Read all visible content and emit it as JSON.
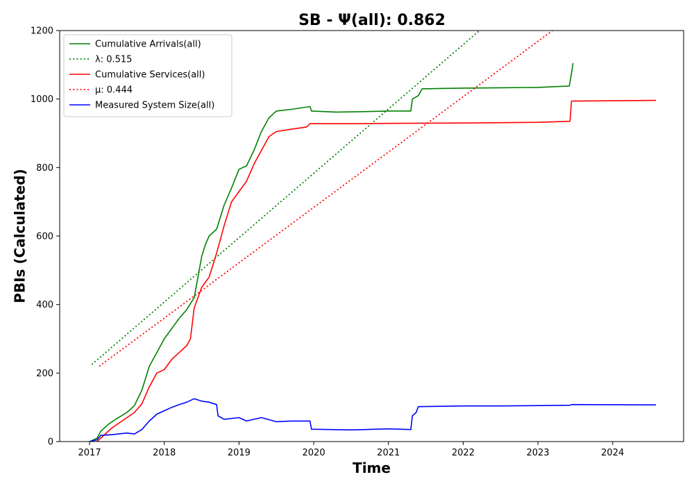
{
  "chart_data": {
    "type": "line",
    "title": "SB -  Ψ(all): 0.862",
    "xlabel": "Time",
    "ylabel": "PBIs (Calculated)",
    "xlim": [
      2016.6,
      2024.95
    ],
    "ylim": [
      0,
      1200
    ],
    "xticks": [
      {
        "value": 2017,
        "label": "2017"
      },
      {
        "value": 2018,
        "label": "2018"
      },
      {
        "value": 2019,
        "label": "2019"
      },
      {
        "value": 2020,
        "label": "2020"
      },
      {
        "value": 2021,
        "label": "2021"
      },
      {
        "value": 2022,
        "label": "2022"
      },
      {
        "value": 2023,
        "label": "2023"
      },
      {
        "value": 2024,
        "label": "2024"
      }
    ],
    "yticks": [
      {
        "value": 0,
        "label": "0"
      },
      {
        "value": 200,
        "label": "200"
      },
      {
        "value": 400,
        "label": "400"
      },
      {
        "value": 600,
        "label": "600"
      },
      {
        "value": 800,
        "label": "800"
      },
      {
        "value": 1000,
        "label": "1000"
      },
      {
        "value": 1200,
        "label": "1200"
      }
    ],
    "grid": false,
    "legend_position": "top-left",
    "series": [
      {
        "name": "Cumulative Arrivals(all)",
        "color": "#008000",
        "style": "solid",
        "x": [
          2017.0,
          2017.1,
          2017.15,
          2017.25,
          2017.35,
          2017.5,
          2017.6,
          2017.7,
          2017.8,
          2017.9,
          2018.0,
          2018.1,
          2018.2,
          2018.3,
          2018.4,
          2018.45,
          2018.5,
          2018.55,
          2018.6,
          2018.7,
          2018.8,
          2018.9,
          2019.0,
          2019.1,
          2019.2,
          2019.3,
          2019.4,
          2019.5,
          2019.7,
          2019.95,
          2019.97,
          2020.3,
          2020.6,
          2021.0,
          2021.3,
          2021.32,
          2021.4,
          2021.45,
          2022.0,
          2022.5,
          2023.0,
          2023.2,
          2023.42,
          2023.45,
          2023.47
        ],
        "values": [
          0,
          10,
          30,
          50,
          65,
          85,
          105,
          150,
          220,
          260,
          300,
          330,
          360,
          385,
          420,
          480,
          540,
          575,
          600,
          620,
          690,
          740,
          795,
          805,
          850,
          905,
          945,
          965,
          970,
          978,
          965,
          962,
          963,
          965,
          965,
          1000,
          1010,
          1030,
          1032,
          1033,
          1034,
          1036,
          1038,
          1075,
          1105
        ]
      },
      {
        "name": "λ: 0.515",
        "color": "#008000",
        "style": "dotted",
        "x": [
          2017.03,
          2022.35
        ],
        "values": [
          225,
          1225
        ]
      },
      {
        "name": "Cumulative Services(all)",
        "color": "#ff0000",
        "style": "solid",
        "x": [
          2017.1,
          2017.2,
          2017.3,
          2017.4,
          2017.5,
          2017.6,
          2017.7,
          2017.8,
          2017.9,
          2018.0,
          2018.1,
          2018.2,
          2018.3,
          2018.35,
          2018.4,
          2018.5,
          2018.6,
          2018.7,
          2018.8,
          2018.9,
          2019.0,
          2019.1,
          2019.2,
          2019.3,
          2019.4,
          2019.5,
          2019.7,
          2019.9,
          2019.95,
          2020.5,
          2021.0,
          2022.0,
          2023.0,
          2023.43,
          2023.45,
          2024.58
        ],
        "values": [
          0,
          20,
          40,
          55,
          70,
          85,
          110,
          160,
          200,
          210,
          240,
          260,
          280,
          300,
          390,
          450,
          480,
          550,
          630,
          700,
          730,
          760,
          810,
          850,
          890,
          905,
          912,
          918,
          928,
          928,
          929,
          930,
          932,
          935,
          994,
          996
        ]
      },
      {
        "name": "μ: 0.444",
        "color": "#ff0000",
        "style": "dotted",
        "x": [
          2017.13,
          2023.35
        ],
        "values": [
          220,
          1225
        ]
      },
      {
        "name": "Measured System Size(all)",
        "color": "#0000ff",
        "style": "solid",
        "x": [
          2017.0,
          2017.1,
          2017.15,
          2017.3,
          2017.5,
          2017.6,
          2017.7,
          2017.8,
          2017.9,
          2018.0,
          2018.1,
          2018.2,
          2018.3,
          2018.4,
          2018.5,
          2018.6,
          2018.7,
          2018.72,
          2018.8,
          2019.0,
          2019.1,
          2019.2,
          2019.3,
          2019.5,
          2019.7,
          2019.95,
          2019.97,
          2020.5,
          2021.0,
          2021.3,
          2021.32,
          2021.37,
          2021.4,
          2022.0,
          2022.5,
          2023.0,
          2023.43,
          2023.45,
          2024.58
        ],
        "values": [
          0,
          5,
          18,
          20,
          25,
          22,
          35,
          60,
          80,
          90,
          100,
          108,
          115,
          125,
          118,
          115,
          108,
          75,
          65,
          70,
          60,
          65,
          70,
          58,
          60,
          60,
          36,
          34,
          37,
          35,
          75,
          85,
          102,
          104,
          104,
          105,
          106,
          108,
          107
        ]
      }
    ]
  }
}
